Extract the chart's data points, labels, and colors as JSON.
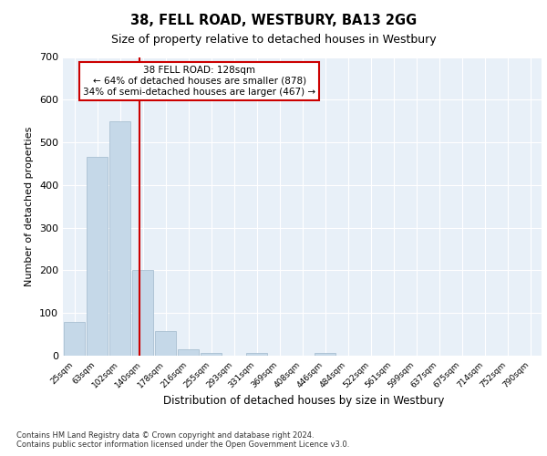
{
  "title1": "38, FELL ROAD, WESTBURY, BA13 2GG",
  "title2": "Size of property relative to detached houses in Westbury",
  "xlabel": "Distribution of detached houses by size in Westbury",
  "ylabel": "Number of detached properties",
  "bar_labels": [
    "25sqm",
    "63sqm",
    "102sqm",
    "140sqm",
    "178sqm",
    "216sqm",
    "255sqm",
    "293sqm",
    "331sqm",
    "369sqm",
    "408sqm",
    "446sqm",
    "484sqm",
    "522sqm",
    "561sqm",
    "599sqm",
    "637sqm",
    "675sqm",
    "714sqm",
    "752sqm",
    "790sqm"
  ],
  "bar_values": [
    80,
    465,
    550,
    200,
    57,
    15,
    7,
    0,
    7,
    0,
    0,
    7,
    0,
    0,
    0,
    0,
    0,
    0,
    0,
    0,
    0
  ],
  "bar_color": "#c5d8e8",
  "bar_edge_color": "#a0b8cc",
  "vline_x": 2.87,
  "vline_color": "#cc0000",
  "annotation_text": "38 FELL ROAD: 128sqm\n← 64% of detached houses are smaller (878)\n34% of semi-detached houses are larger (467) →",
  "annotation_box_color": "#ffffff",
  "annotation_box_edge": "#cc0000",
  "ylim": [
    0,
    700
  ],
  "yticks": [
    0,
    100,
    200,
    300,
    400,
    500,
    600,
    700
  ],
  "plot_bg_color": "#e8f0f8",
  "footer1": "Contains HM Land Registry data © Crown copyright and database right 2024.",
  "footer2": "Contains public sector information licensed under the Open Government Licence v3.0."
}
